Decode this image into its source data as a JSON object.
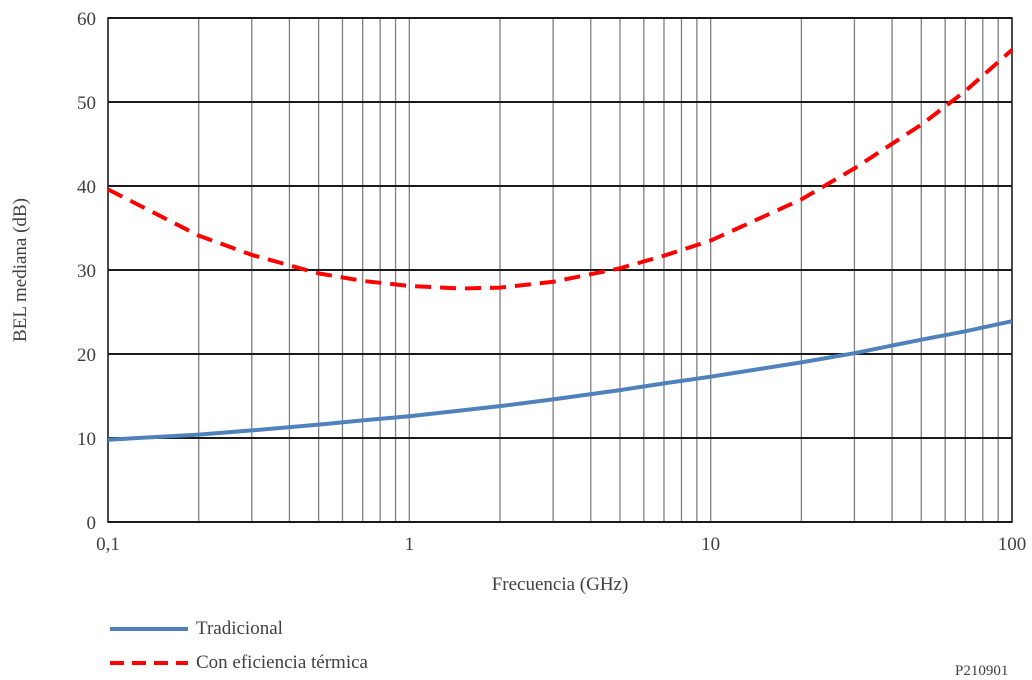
{
  "chart_data": {
    "type": "line",
    "xlabel": "Frecuencia (GHz)",
    "ylabel": "BEL mediana (dB)",
    "xscale": "log",
    "xlim": [
      0.1,
      100
    ],
    "ylim": [
      0,
      60
    ],
    "x_ticks": [
      "0,1",
      "1",
      "10",
      "100"
    ],
    "y_ticks": [
      "0",
      "10",
      "20",
      "30",
      "40",
      "50",
      "60"
    ],
    "grid": true,
    "legend_position": "bottom-left",
    "series": [
      {
        "name": "Tradicional",
        "color": "#4f81bd",
        "style": "solid",
        "x": [
          0.1,
          0.2,
          0.3,
          0.5,
          0.7,
          1,
          2,
          3,
          5,
          7,
          10,
          20,
          30,
          50,
          70,
          100
        ],
        "y": [
          9.8,
          10.4,
          10.9,
          11.6,
          12.1,
          12.6,
          13.8,
          14.6,
          15.7,
          16.5,
          17.3,
          19.0,
          20.1,
          21.7,
          22.7,
          23.9
        ]
      },
      {
        "name": "Con eficiencia térmica",
        "color": "#ff0000",
        "style": "dashed",
        "x": [
          0.1,
          0.2,
          0.3,
          0.5,
          0.7,
          1,
          1.5,
          2,
          3,
          5,
          7,
          10,
          20,
          30,
          50,
          70,
          100
        ],
        "y": [
          39.6,
          34.1,
          31.8,
          29.6,
          28.7,
          28.1,
          27.8,
          27.9,
          28.6,
          30.2,
          31.7,
          33.5,
          38.4,
          42.1,
          47.3,
          51.3,
          56.2
        ]
      }
    ]
  },
  "figure_id": "P210901"
}
